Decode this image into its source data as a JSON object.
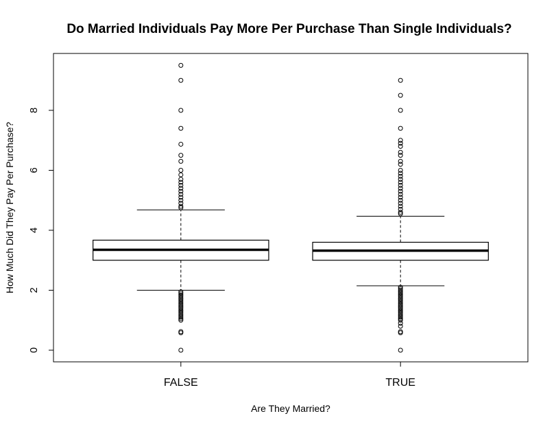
{
  "chart_data": {
    "type": "box",
    "title": "Do Married Individuals Pay More Per Purchase Than Single Individuals?",
    "xlabel": "Are They Married?",
    "ylabel": "How Much Did They Pay Per Purchase?",
    "ylim": [
      -0.35,
      9.7
    ],
    "yticks": [
      0,
      2,
      4,
      6,
      8
    ],
    "categories": [
      "FALSE",
      "TRUE"
    ],
    "boxes": [
      {
        "category": "FALSE",
        "lower_whisker": 2.0,
        "q1": 3.0,
        "median": 3.35,
        "q3": 3.67,
        "upper_whisker": 4.68,
        "outliers": [
          9.5,
          9.0,
          8.0,
          7.4,
          6.87,
          6.5,
          6.3,
          6.0,
          5.85,
          5.7,
          5.6,
          5.5,
          5.4,
          5.3,
          5.2,
          5.1,
          5.0,
          4.9,
          4.8,
          4.75,
          1.95,
          1.9,
          1.85,
          1.8,
          1.75,
          1.7,
          1.65,
          1.6,
          1.55,
          1.5,
          1.45,
          1.4,
          1.35,
          1.3,
          1.25,
          1.2,
          1.15,
          1.1,
          1.05,
          1.0,
          0.62,
          0.58,
          0.0
        ]
      },
      {
        "category": "TRUE",
        "lower_whisker": 2.15,
        "q1": 3.0,
        "median": 3.32,
        "q3": 3.6,
        "upper_whisker": 4.47,
        "outliers": [
          9.0,
          8.5,
          8.0,
          7.4,
          7.0,
          6.9,
          6.8,
          6.6,
          6.5,
          6.3,
          6.2,
          6.0,
          5.9,
          5.8,
          5.7,
          5.6,
          5.5,
          5.4,
          5.3,
          5.2,
          5.1,
          5.0,
          4.9,
          4.8,
          4.7,
          4.6,
          4.55,
          2.1,
          2.05,
          2.0,
          1.95,
          1.9,
          1.85,
          1.8,
          1.75,
          1.7,
          1.65,
          1.6,
          1.55,
          1.5,
          1.45,
          1.4,
          1.35,
          1.3,
          1.25,
          1.2,
          1.15,
          1.1,
          1.05,
          1.0,
          0.9,
          0.8,
          0.62,
          0.58,
          0.0
        ]
      }
    ],
    "grid": false,
    "legend": "none"
  },
  "colors": {
    "background": "#ffffff",
    "ink": "#000000"
  }
}
